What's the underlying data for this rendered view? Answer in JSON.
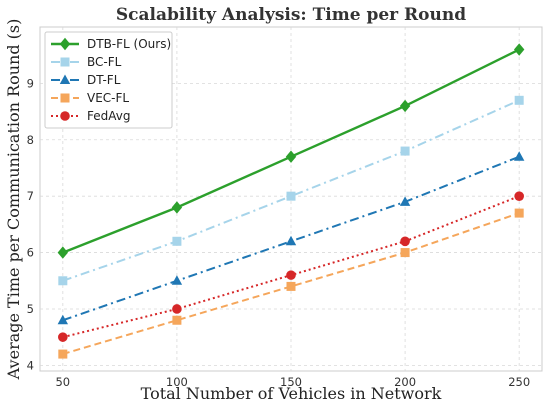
{
  "chart_data": {
    "type": "line",
    "title": "Scalability Analysis: Time per Round",
    "xlabel": "Total Number of Vehicles in Network",
    "ylabel": "Average Time per Communication Round (s)",
    "x": [
      50,
      100,
      150,
      200,
      250
    ],
    "xlim": [
      40,
      260
    ],
    "ylim": [
      3.9,
      10.0
    ],
    "xticks": [
      "50",
      "100",
      "150",
      "200",
      "250"
    ],
    "yticks": [
      "4",
      "5",
      "6",
      "7",
      "8",
      "9"
    ],
    "grid": true,
    "legend_position": "top-left",
    "series": [
      {
        "name": "DTB-FL (Ours)",
        "values": [
          6.0,
          6.8,
          7.7,
          8.6,
          9.6
        ],
        "color": "#2ca02c",
        "line": "solid",
        "marker": "diamond"
      },
      {
        "name": "BC-FL",
        "values": [
          5.5,
          6.2,
          7.0,
          7.8,
          8.7
        ],
        "color": "#a6d4ea",
        "line": "dashdot",
        "marker": "square"
      },
      {
        "name": "DT-FL",
        "values": [
          4.8,
          5.5,
          6.2,
          6.9,
          7.7
        ],
        "color": "#1f77b4",
        "line": "dashdot",
        "marker": "triangle"
      },
      {
        "name": "VEC-FL",
        "values": [
          4.2,
          4.8,
          5.4,
          6.0,
          6.7
        ],
        "color": "#f5a65b",
        "line": "dashed",
        "marker": "square"
      },
      {
        "name": "FedAvg",
        "values": [
          4.5,
          5.0,
          5.6,
          6.2,
          7.0
        ],
        "color": "#d62728",
        "line": "dotted",
        "marker": "circle"
      }
    ]
  }
}
